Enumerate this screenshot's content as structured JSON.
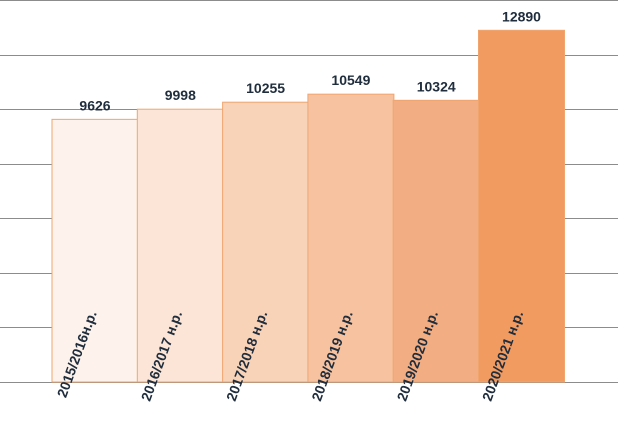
{
  "chart_data": {
    "type": "bar",
    "title": "",
    "xlabel": "",
    "ylabel": "",
    "categories": [
      "2015/2016н.р.",
      "2016/2017 н.р.",
      "2017/2018 н.р.",
      "2018/2019 н.р.",
      "2019/2020 н.р.",
      "2020/2021 н.р."
    ],
    "values": [
      9626,
      9998,
      10255,
      10549,
      10324,
      12890
    ],
    "ylim": [
      0,
      14000
    ],
    "grid": true,
    "legend": "none",
    "bar_colors": [
      "#fdf3ec",
      "#fce5d6",
      "#f9d3b8",
      "#f7c29f",
      "#f3ad82",
      "#f29b61"
    ],
    "bar_outline_color": "#f0a56e",
    "gridline_color": "#8c8c8c",
    "label_color": "#1f2d3d"
  }
}
